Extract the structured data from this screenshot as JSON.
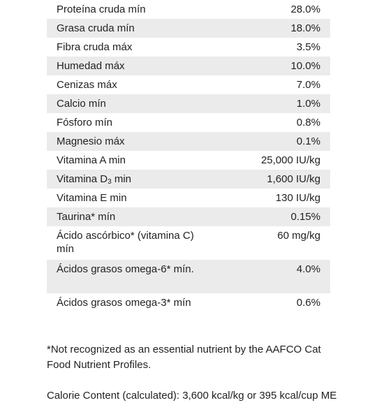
{
  "rows": [
    {
      "label": "Proteína cruda mín",
      "value": "28.0%"
    },
    {
      "label": "Grasa cruda mín",
      "value": "18.0%"
    },
    {
      "label": "Fibra cruda máx",
      "value": "3.5%"
    },
    {
      "label": "Humedad máx",
      "value": "10.0%"
    },
    {
      "label": "Cenizas máx",
      "value": "7.0%"
    },
    {
      "label": "Calcio mín",
      "value": "1.0%"
    },
    {
      "label": "Fósforo mín",
      "value": "0.8%"
    },
    {
      "label": "Magnesio máx",
      "value": "0.1%"
    },
    {
      "label": "Vitamina A min",
      "value": "25,000 IU/kg"
    },
    {
      "label_pre": "Vitamina D",
      "label_sub": "3",
      "label_post": " min",
      "value": "1,600 IU/kg"
    },
    {
      "label": "Vitamina E min",
      "value": "130 IU/kg"
    },
    {
      "label": "Taurina* mín",
      "value": "0.15%"
    },
    {
      "label": "Ácido ascórbico* (vitamina C) mín",
      "value": "60 mg/kg"
    },
    {
      "label": "Ácidos grasos omega-6* mín.",
      "value": "4.0%"
    },
    {
      "label": "Ácidos grasos omega-3* mín",
      "value": "0.6%"
    }
  ],
  "footnote": "*Not recognized as an essential nutrient by the AAFCO Cat Food Nutrient Profiles.",
  "calorie": "Calorie Content (calculated): 3,600 kcal/kg or 395 kcal/cup ME"
}
